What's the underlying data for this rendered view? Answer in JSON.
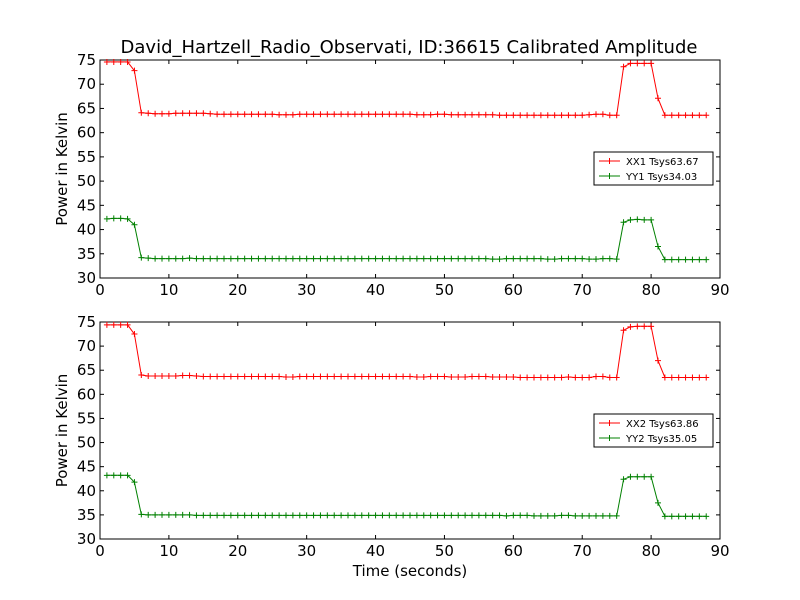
{
  "title": "David_Hartzell_Radio_Observati, ID:36615 Calibrated Amplitude",
  "xlabel": "Time (seconds)",
  "chart_data": [
    {
      "type": "line",
      "ylabel": "Power in Kelvin",
      "xlim": [
        0,
        90
      ],
      "ylim": [
        30,
        75
      ],
      "xticks": [
        0,
        10,
        20,
        30,
        40,
        50,
        60,
        70,
        80,
        90
      ],
      "yticks": [
        30,
        35,
        40,
        45,
        50,
        55,
        60,
        65,
        70,
        75
      ],
      "grid": false,
      "legend_position": "center-right",
      "series": [
        {
          "name": "XX1 Tsys63.67",
          "color": "#ff0000",
          "x": [
            1,
            2,
            3,
            4,
            5,
            6,
            7,
            8,
            9,
            10,
            11,
            12,
            13,
            14,
            15,
            16,
            17,
            18,
            19,
            20,
            21,
            22,
            23,
            24,
            25,
            26,
            27,
            28,
            29,
            30,
            31,
            32,
            33,
            34,
            35,
            36,
            37,
            38,
            39,
            40,
            41,
            42,
            43,
            44,
            45,
            46,
            47,
            48,
            49,
            50,
            51,
            52,
            53,
            54,
            55,
            56,
            57,
            58,
            59,
            60,
            61,
            62,
            63,
            64,
            65,
            66,
            67,
            68,
            69,
            70,
            71,
            72,
            73,
            74,
            75,
            76,
            77,
            78,
            79,
            80,
            81,
            82,
            83,
            84,
            85,
            86,
            87,
            88
          ],
          "y": [
            74.6,
            74.6,
            74.6,
            74.6,
            72.8,
            64.1,
            64.0,
            63.9,
            63.9,
            63.9,
            64.0,
            64.0,
            64.0,
            64.0,
            64.0,
            63.9,
            63.8,
            63.8,
            63.8,
            63.8,
            63.8,
            63.8,
            63.8,
            63.8,
            63.8,
            63.7,
            63.7,
            63.7,
            63.8,
            63.8,
            63.8,
            63.8,
            63.8,
            63.8,
            63.8,
            63.8,
            63.8,
            63.8,
            63.8,
            63.8,
            63.8,
            63.8,
            63.8,
            63.8,
            63.8,
            63.7,
            63.7,
            63.7,
            63.8,
            63.8,
            63.7,
            63.7,
            63.7,
            63.7,
            63.7,
            63.7,
            63.7,
            63.6,
            63.6,
            63.6,
            63.6,
            63.6,
            63.6,
            63.6,
            63.6,
            63.6,
            63.6,
            63.6,
            63.6,
            63.6,
            63.7,
            63.8,
            63.8,
            63.6,
            63.6,
            73.6,
            74.3,
            74.3,
            74.3,
            74.3,
            67.1,
            63.6,
            63.6,
            63.6,
            63.6,
            63.6,
            63.6,
            63.6
          ]
        },
        {
          "name": "YY1 Tsys34.03",
          "color": "#008000",
          "x": [
            1,
            2,
            3,
            4,
            5,
            6,
            7,
            8,
            9,
            10,
            11,
            12,
            13,
            14,
            15,
            16,
            17,
            18,
            19,
            20,
            21,
            22,
            23,
            24,
            25,
            26,
            27,
            28,
            29,
            30,
            31,
            32,
            33,
            34,
            35,
            36,
            37,
            38,
            39,
            40,
            41,
            42,
            43,
            44,
            45,
            46,
            47,
            48,
            49,
            50,
            51,
            52,
            53,
            54,
            55,
            56,
            57,
            58,
            59,
            60,
            61,
            62,
            63,
            64,
            65,
            66,
            67,
            68,
            69,
            70,
            71,
            72,
            73,
            74,
            75,
            76,
            77,
            78,
            79,
            80,
            81,
            82,
            83,
            84,
            85,
            86,
            87,
            88
          ],
          "y": [
            42.2,
            42.3,
            42.3,
            42.2,
            41.0,
            34.2,
            34.1,
            34.0,
            34.0,
            34.0,
            34.0,
            34.0,
            34.1,
            34.0,
            34.0,
            34.0,
            34.0,
            34.0,
            34.0,
            34.0,
            34.0,
            34.0,
            34.0,
            34.0,
            34.0,
            34.0,
            34.0,
            34.0,
            34.0,
            34.0,
            34.0,
            34.0,
            34.0,
            34.0,
            34.0,
            34.0,
            34.0,
            34.0,
            34.0,
            34.0,
            34.0,
            34.0,
            34.0,
            34.0,
            34.0,
            34.0,
            34.0,
            34.0,
            34.0,
            34.0,
            34.0,
            34.0,
            34.0,
            34.0,
            34.0,
            34.0,
            33.9,
            33.9,
            34.0,
            34.0,
            34.0,
            34.0,
            34.0,
            34.0,
            33.9,
            33.9,
            34.0,
            34.0,
            34.0,
            34.0,
            33.9,
            33.9,
            34.0,
            34.0,
            33.9,
            41.5,
            42.0,
            42.1,
            42.0,
            42.0,
            36.5,
            33.8,
            33.8,
            33.8,
            33.8,
            33.8,
            33.8,
            33.8
          ]
        }
      ]
    },
    {
      "type": "line",
      "ylabel": "Power in Kelvin",
      "xlabel": "Time (seconds)",
      "xlim": [
        0,
        90
      ],
      "ylim": [
        30,
        75
      ],
      "xticks": [
        0,
        10,
        20,
        30,
        40,
        50,
        60,
        70,
        80,
        90
      ],
      "yticks": [
        30,
        35,
        40,
        45,
        50,
        55,
        60,
        65,
        70,
        75
      ],
      "grid": false,
      "legend_position": "center-right",
      "series": [
        {
          "name": "XX2 Tsys63.86",
          "color": "#ff0000",
          "x": [
            1,
            2,
            3,
            4,
            5,
            6,
            7,
            8,
            9,
            10,
            11,
            12,
            13,
            14,
            15,
            16,
            17,
            18,
            19,
            20,
            21,
            22,
            23,
            24,
            25,
            26,
            27,
            28,
            29,
            30,
            31,
            32,
            33,
            34,
            35,
            36,
            37,
            38,
            39,
            40,
            41,
            42,
            43,
            44,
            45,
            46,
            47,
            48,
            49,
            50,
            51,
            52,
            53,
            54,
            55,
            56,
            57,
            58,
            59,
            60,
            61,
            62,
            63,
            64,
            65,
            66,
            67,
            68,
            69,
            70,
            71,
            72,
            73,
            74,
            75,
            76,
            77,
            78,
            79,
            80,
            81,
            82,
            83,
            84,
            85,
            86,
            87,
            88
          ],
          "y": [
            74.4,
            74.4,
            74.4,
            74.4,
            72.5,
            64.0,
            63.8,
            63.8,
            63.8,
            63.8,
            63.8,
            63.9,
            63.9,
            63.8,
            63.7,
            63.7,
            63.7,
            63.7,
            63.7,
            63.7,
            63.7,
            63.7,
            63.7,
            63.7,
            63.7,
            63.7,
            63.6,
            63.6,
            63.7,
            63.7,
            63.7,
            63.7,
            63.7,
            63.7,
            63.7,
            63.7,
            63.7,
            63.7,
            63.7,
            63.7,
            63.7,
            63.7,
            63.7,
            63.7,
            63.7,
            63.6,
            63.6,
            63.7,
            63.7,
            63.7,
            63.6,
            63.6,
            63.6,
            63.7,
            63.7,
            63.7,
            63.6,
            63.6,
            63.6,
            63.6,
            63.5,
            63.5,
            63.5,
            63.5,
            63.5,
            63.5,
            63.5,
            63.6,
            63.5,
            63.5,
            63.5,
            63.7,
            63.7,
            63.5,
            63.5,
            73.3,
            74.0,
            74.1,
            74.1,
            74.1,
            67.0,
            63.5,
            63.5,
            63.5,
            63.5,
            63.5,
            63.5,
            63.5
          ]
        },
        {
          "name": "YY2 Tsys35.05",
          "color": "#008000",
          "x": [
            1,
            2,
            3,
            4,
            5,
            6,
            7,
            8,
            9,
            10,
            11,
            12,
            13,
            14,
            15,
            16,
            17,
            18,
            19,
            20,
            21,
            22,
            23,
            24,
            25,
            26,
            27,
            28,
            29,
            30,
            31,
            32,
            33,
            34,
            35,
            36,
            37,
            38,
            39,
            40,
            41,
            42,
            43,
            44,
            45,
            46,
            47,
            48,
            49,
            50,
            51,
            52,
            53,
            54,
            55,
            56,
            57,
            58,
            59,
            60,
            61,
            62,
            63,
            64,
            65,
            66,
            67,
            68,
            69,
            70,
            71,
            72,
            73,
            74,
            75,
            76,
            77,
            78,
            79,
            80,
            81,
            82,
            83,
            84,
            85,
            86,
            87,
            88
          ],
          "y": [
            43.2,
            43.2,
            43.2,
            43.2,
            41.8,
            35.1,
            35.0,
            35.0,
            35.0,
            35.0,
            35.0,
            35.0,
            35.0,
            34.9,
            34.9,
            34.9,
            34.9,
            34.9,
            34.9,
            34.9,
            34.9,
            34.9,
            34.9,
            34.9,
            34.9,
            34.9,
            34.9,
            34.9,
            34.9,
            34.9,
            34.9,
            34.9,
            34.9,
            34.9,
            34.9,
            34.9,
            34.9,
            34.9,
            34.9,
            34.9,
            34.9,
            34.9,
            34.9,
            34.9,
            34.9,
            34.9,
            34.9,
            34.9,
            34.9,
            34.9,
            34.9,
            34.9,
            34.9,
            34.9,
            34.9,
            34.9,
            34.9,
            34.9,
            34.8,
            34.9,
            34.9,
            34.9,
            34.8,
            34.8,
            34.8,
            34.8,
            34.9,
            34.9,
            34.8,
            34.8,
            34.8,
            34.8,
            34.8,
            34.8,
            34.8,
            42.4,
            42.9,
            42.9,
            42.9,
            42.9,
            37.5,
            34.7,
            34.7,
            34.7,
            34.7,
            34.7,
            34.7,
            34.7
          ]
        }
      ]
    }
  ]
}
